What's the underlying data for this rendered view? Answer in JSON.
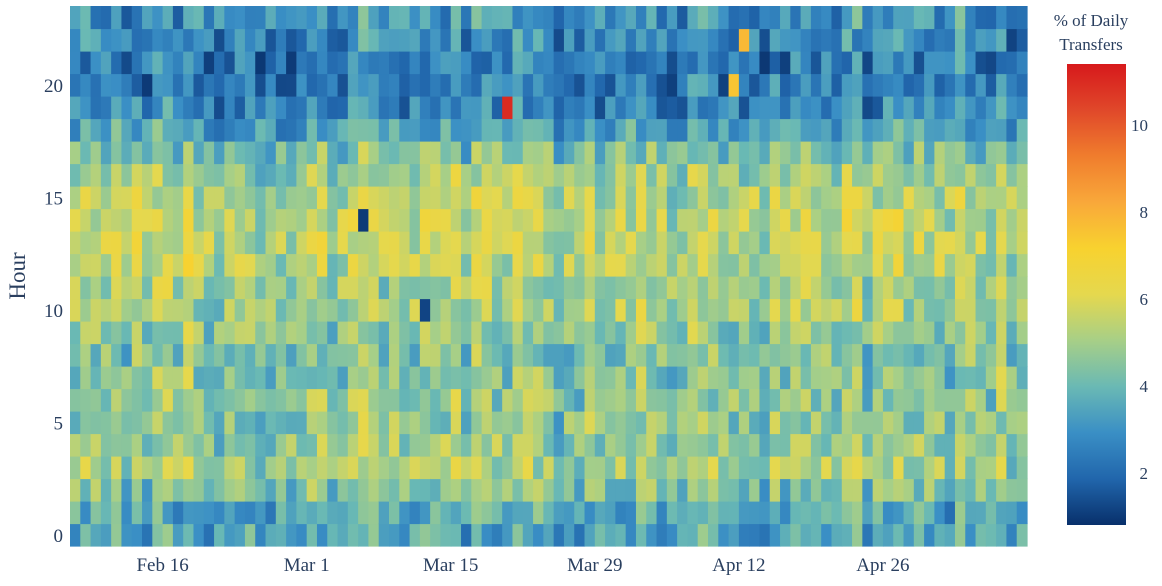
{
  "chart_data": {
    "type": "heatmap",
    "title": "",
    "xlabel": "",
    "ylabel": "Hour",
    "x_tick_labels": [
      "Feb 16",
      "Mar 1",
      "Mar 15",
      "Mar 29",
      "Apr 12",
      "Apr 26"
    ],
    "x_tick_dates": [
      "2020-02-16",
      "2020-03-01",
      "2020-03-15",
      "2020-03-29",
      "2020-04-12",
      "2020-04-26"
    ],
    "x_range": [
      "2020-02-07",
      "2020-05-10"
    ],
    "y_tick_labels": [
      "0",
      "5",
      "10",
      "15",
      "20"
    ],
    "y_tick_values": [
      0,
      5,
      10,
      15,
      20
    ],
    "y_range": [
      -0.5,
      23.5
    ],
    "colorbar": {
      "title_lines": [
        "% of Daily",
        "Transfers"
      ],
      "tick_labels": [
        "2",
        "4",
        "6",
        "8",
        "10"
      ],
      "tick_values": [
        2,
        4,
        6,
        8,
        10
      ],
      "range": [
        0.8,
        11.4
      ],
      "colorscale": [
        "#08306b",
        "#2166ac",
        "#3a8fc5",
        "#6ab9b4",
        "#a7cf87",
        "#e5d84e",
        "#f8d22f",
        "#f9a83a",
        "#f07d2d",
        "#e0482a",
        "#d7191c"
      ]
    },
    "hourly_profile": [
      {
        "hour": 0,
        "value": 3.5
      },
      {
        "hour": 1,
        "value": 3.6
      },
      {
        "hour": 2,
        "value": 4.4
      },
      {
        "hour": 3,
        "value": 5.0
      },
      {
        "hour": 4,
        "value": 4.8
      },
      {
        "hour": 5,
        "value": 4.6
      },
      {
        "hour": 6,
        "value": 4.6
      },
      {
        "hour": 7,
        "value": 4.5
      },
      {
        "hour": 8,
        "value": 4.4
      },
      {
        "hour": 9,
        "value": 4.7
      },
      {
        "hour": 10,
        "value": 5.0
      },
      {
        "hour": 11,
        "value": 5.1
      },
      {
        "hour": 12,
        "value": 5.4
      },
      {
        "hour": 13,
        "value": 5.5
      },
      {
        "hour": 14,
        "value": 5.5
      },
      {
        "hour": 15,
        "value": 5.3
      },
      {
        "hour": 16,
        "value": 4.9
      },
      {
        "hour": 17,
        "value": 4.3
      },
      {
        "hour": 18,
        "value": 3.4
      },
      {
        "hour": 19,
        "value": 2.6
      },
      {
        "hour": 20,
        "value": 2.4
      },
      {
        "hour": 21,
        "value": 2.4
      },
      {
        "hour": 22,
        "value": 2.7
      },
      {
        "hour": 23,
        "value": 3.0
      }
    ],
    "notable_cells": [
      {
        "date": "2020-03-20",
        "hour": 19,
        "value": 11.0
      },
      {
        "date": "2020-03-06",
        "hour": 14,
        "value": 1.0
      },
      {
        "date": "2020-03-12",
        "hour": 10,
        "value": 1.2
      },
      {
        "date": "2020-04-11",
        "hour": 20,
        "value": 7.5
      },
      {
        "date": "2020-04-12",
        "hour": 22,
        "value": 7.8
      }
    ]
  }
}
